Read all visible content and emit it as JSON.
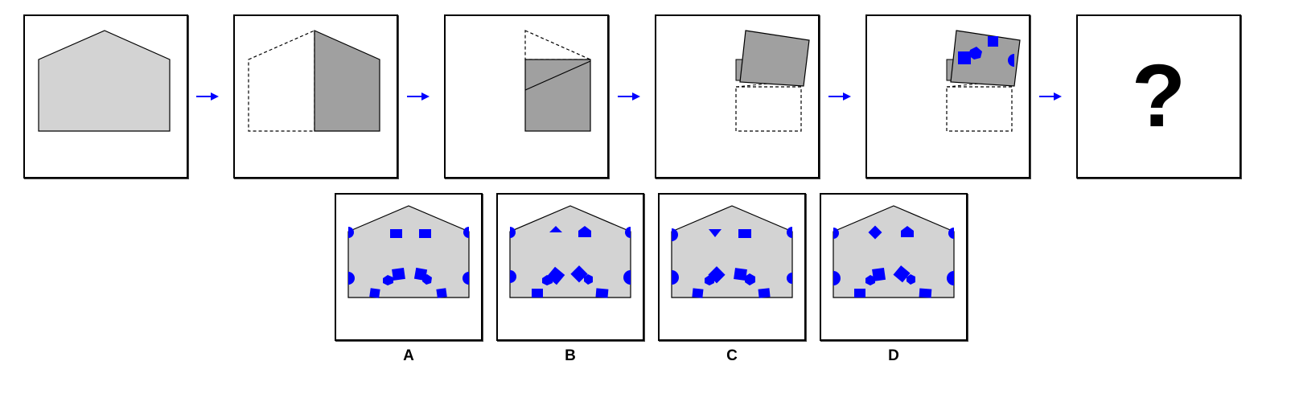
{
  "question_mark": "?",
  "options": [
    {
      "label": "A"
    },
    {
      "label": "B"
    },
    {
      "label": "C"
    },
    {
      "label": "D"
    }
  ],
  "colors": {
    "paper": "#d3d3d3",
    "folded": "#a0a0a0",
    "punch": "#0000ff",
    "arrow": "#0000ff",
    "border": "#000000"
  }
}
